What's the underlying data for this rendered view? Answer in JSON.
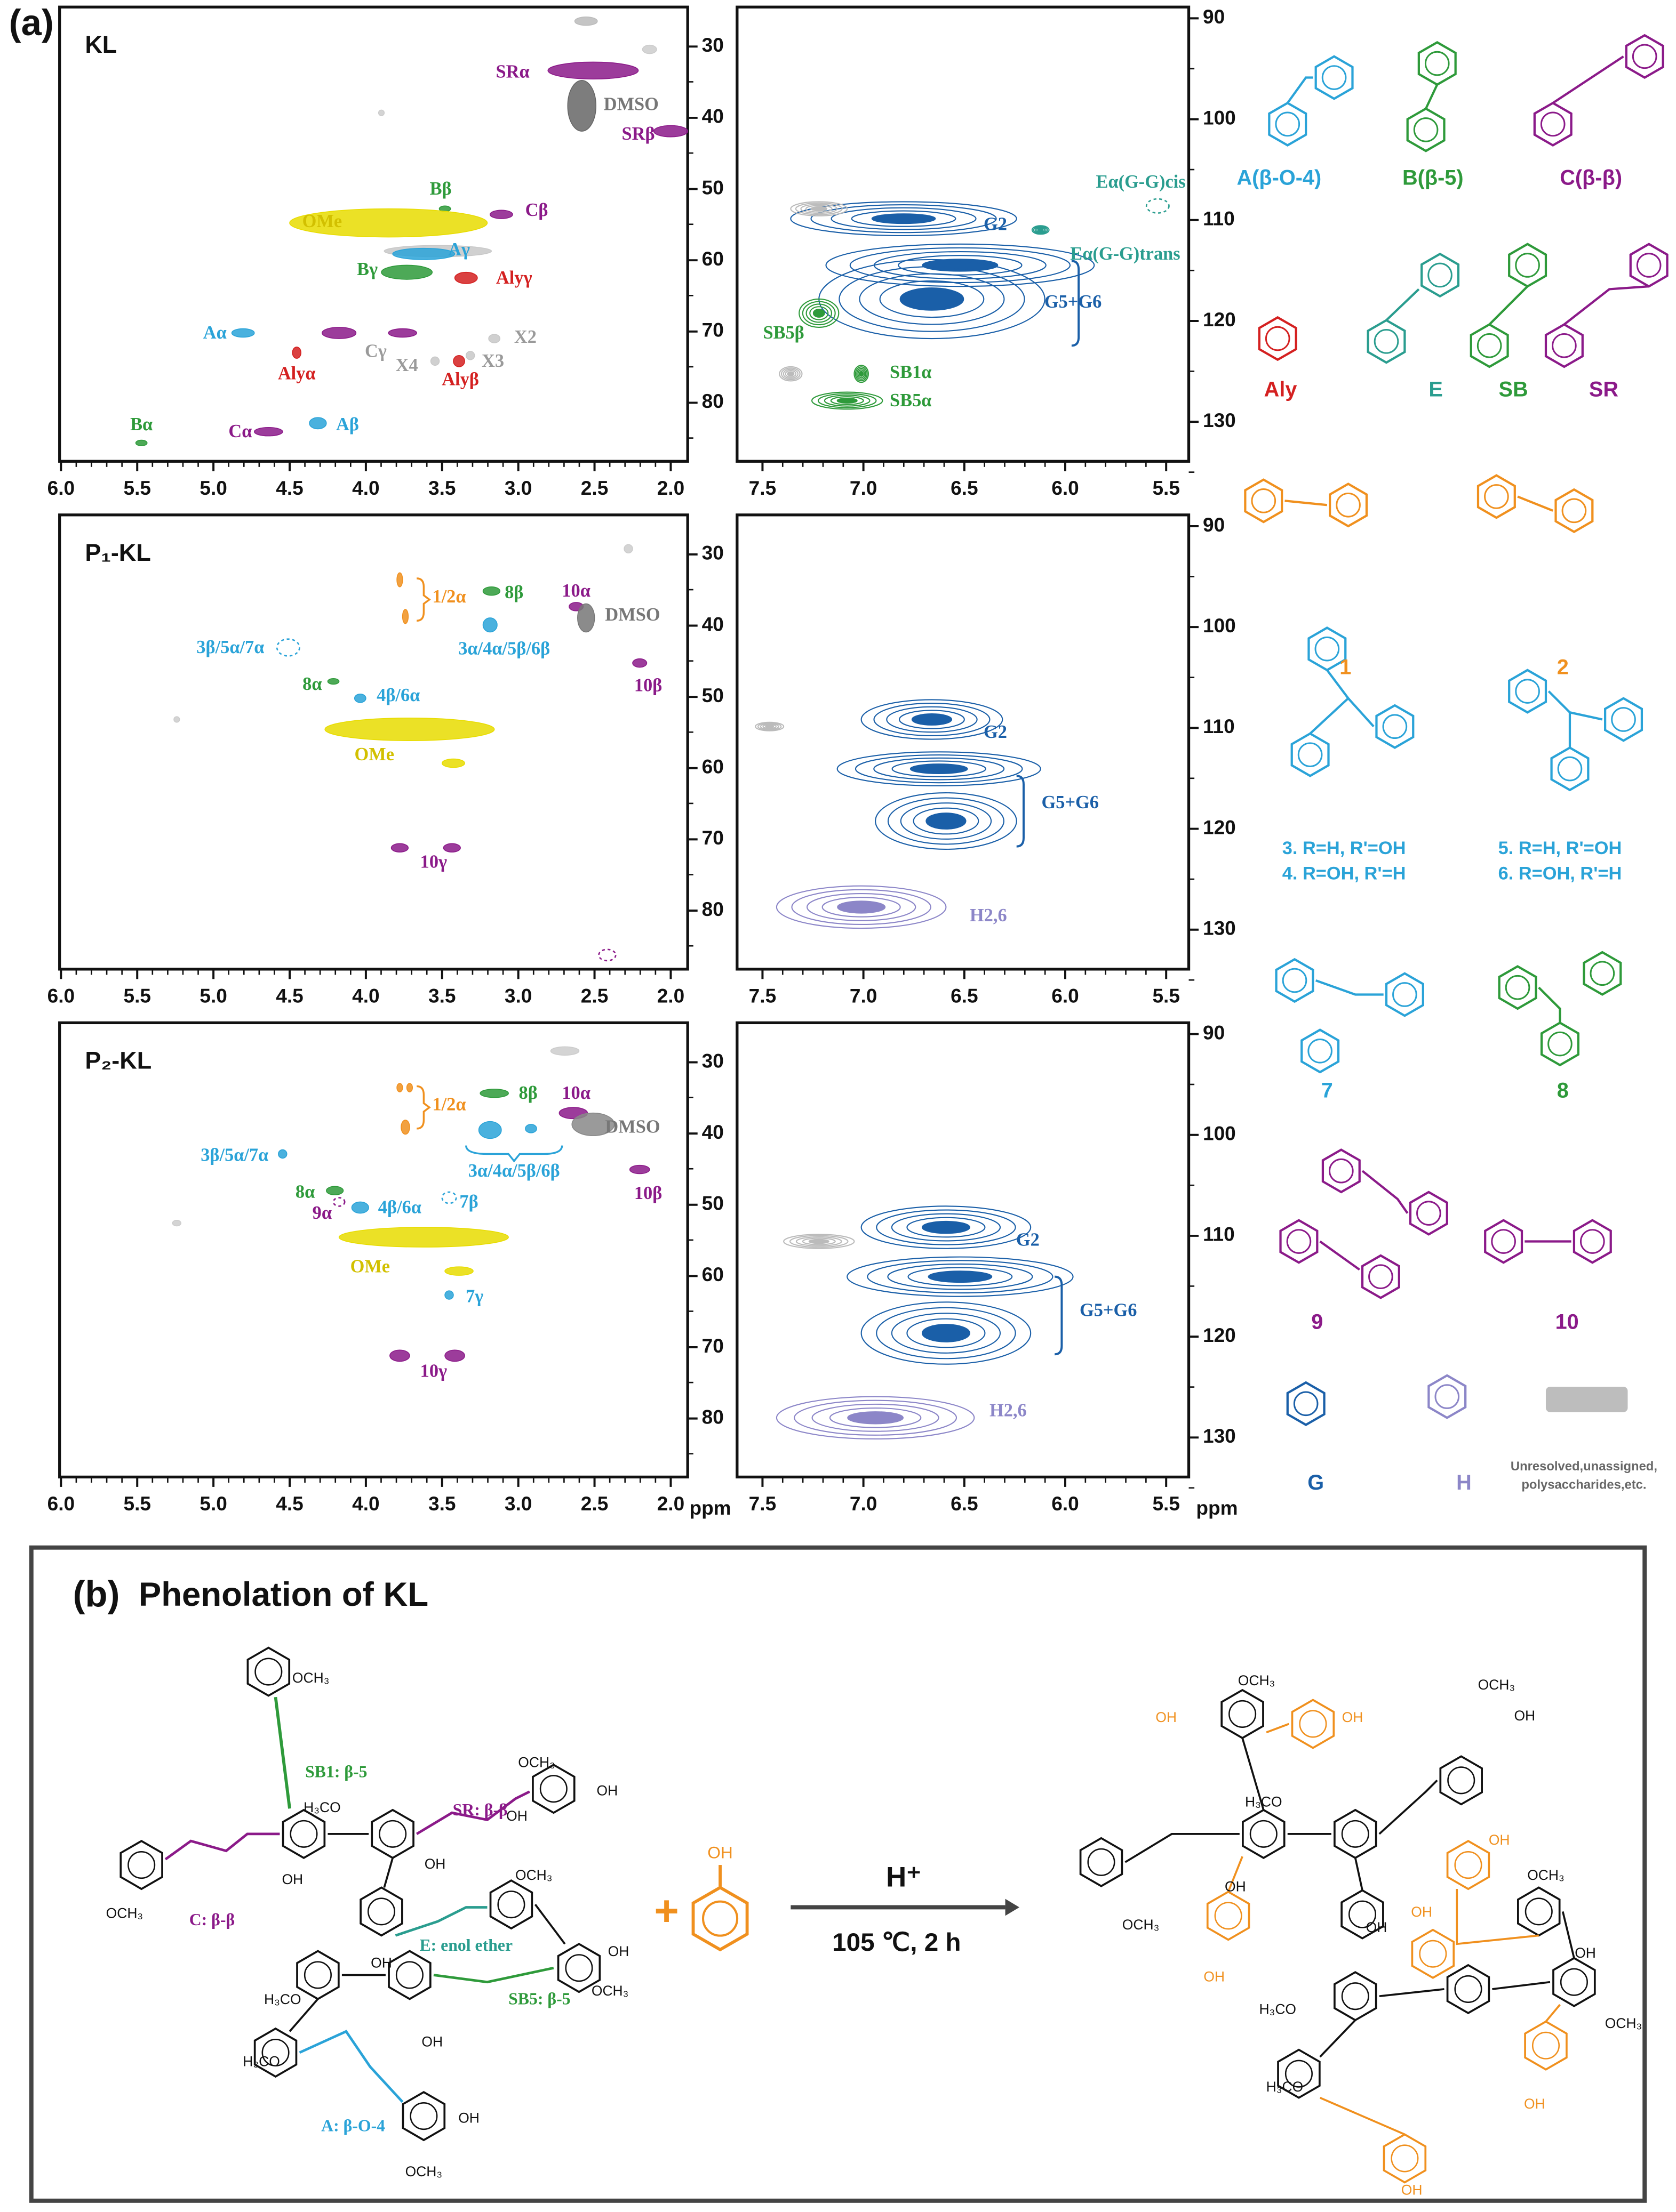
{
  "panel_a": {
    "label": "(a)",
    "unit": "ppm",
    "aliphatic_axis": {
      "x_ticks": [
        "6.0",
        "5.5",
        "5.0",
        "4.5",
        "4.0",
        "3.5",
        "3.0",
        "2.5",
        "2.0"
      ],
      "y_ticks": [
        "30",
        "40",
        "50",
        "60",
        "70",
        "80"
      ]
    },
    "aromatic_axis": {
      "x_ticks": [
        "7.5",
        "7.0",
        "6.5",
        "6.0",
        "5.5"
      ],
      "y_ticks": [
        "90",
        "100",
        "110",
        "120",
        "130"
      ]
    },
    "spectra": [
      {
        "sample": "KL",
        "aliphatic_peaks": [
          "SRα",
          "DMSO",
          "SRβ",
          "Bβ",
          "Cβ",
          "OMe",
          "Aγ",
          "Bγ",
          "Alyγ",
          "Aα",
          "Cγ",
          "X2",
          "X4",
          "X3",
          "Alyα",
          "Alyβ",
          "Bα",
          "Cα",
          "Aβ"
        ],
        "aromatic_peaks": [
          "G2",
          "Eα(G-G)cis",
          "Eα(G-G)trans",
          "G5+G6",
          "SB5β",
          "SB1α",
          "SB5α"
        ]
      },
      {
        "sample": "P₁-KL",
        "aliphatic_peaks": [
          "1/2α",
          "8β",
          "10α",
          "DMSO",
          "3β/5α/7α",
          "3α/4α/5β/6β",
          "8α",
          "10β",
          "4β/6α",
          "OMe",
          "10γ"
        ],
        "aromatic_peaks": [
          "G2",
          "G5+G6",
          "H2,6"
        ]
      },
      {
        "sample": "P₂-KL",
        "aliphatic_peaks": [
          "1/2α",
          "8β",
          "10α",
          "DMSO",
          "3α/4α/5β/6β",
          "3β/5α/7α",
          "8α",
          "9α",
          "4β/6α",
          "7β",
          "10β",
          "OMe",
          "7γ",
          "10γ"
        ],
        "aromatic_peaks": [
          "G2",
          "G5+G6",
          "H2,6"
        ]
      }
    ],
    "structure_labels": [
      "A(β-O-4)",
      "B(β-5)",
      "C(β-β)",
      "Aly",
      "E",
      "SB",
      "SR",
      "1",
      "2",
      "7",
      "8",
      "9",
      "10",
      "G",
      "H"
    ],
    "structure_notes": [
      "3. R=H, R'=OH",
      "4. R=OH, R'=H",
      "5. R=H, R'=OH",
      "6. R=OH, R'=H"
    ],
    "legend_note": [
      "Unresolved,unassigned,",
      "polysaccharides,etc."
    ]
  },
  "panel_b": {
    "label": "(b)",
    "title": "Phenolation of KL",
    "reactant_linkages": [
      "SB1: β-5",
      "SR: β-β",
      "C: β-β",
      "E: enol ether",
      "SB5: β-5",
      "A: β-O-4"
    ],
    "reactant_groups": [
      "OCH₃",
      "OCH₃",
      "OH",
      "H₃CO",
      "OH",
      "OH",
      "OCH₃",
      "OH",
      "OCH₃",
      "OH",
      "OH",
      "H₃CO",
      "OCH₃",
      "H₃CO",
      "OH",
      "OH",
      "OCH₃"
    ],
    "reagent_groups": [
      "OH"
    ],
    "plus": "+",
    "catalyst": "H⁺",
    "conditions": "105 ℃, 2 h",
    "product_groups": [
      "OCH₃",
      "OH",
      "OH",
      "OCH₃",
      "OH",
      "H₃CO",
      "OH",
      "OCH₃",
      "OH",
      "OH",
      "OCH₃",
      "OH",
      "OH",
      "OH",
      "H₃CO",
      "OCH₃",
      "H₃CO",
      "OH",
      "OH"
    ]
  }
}
